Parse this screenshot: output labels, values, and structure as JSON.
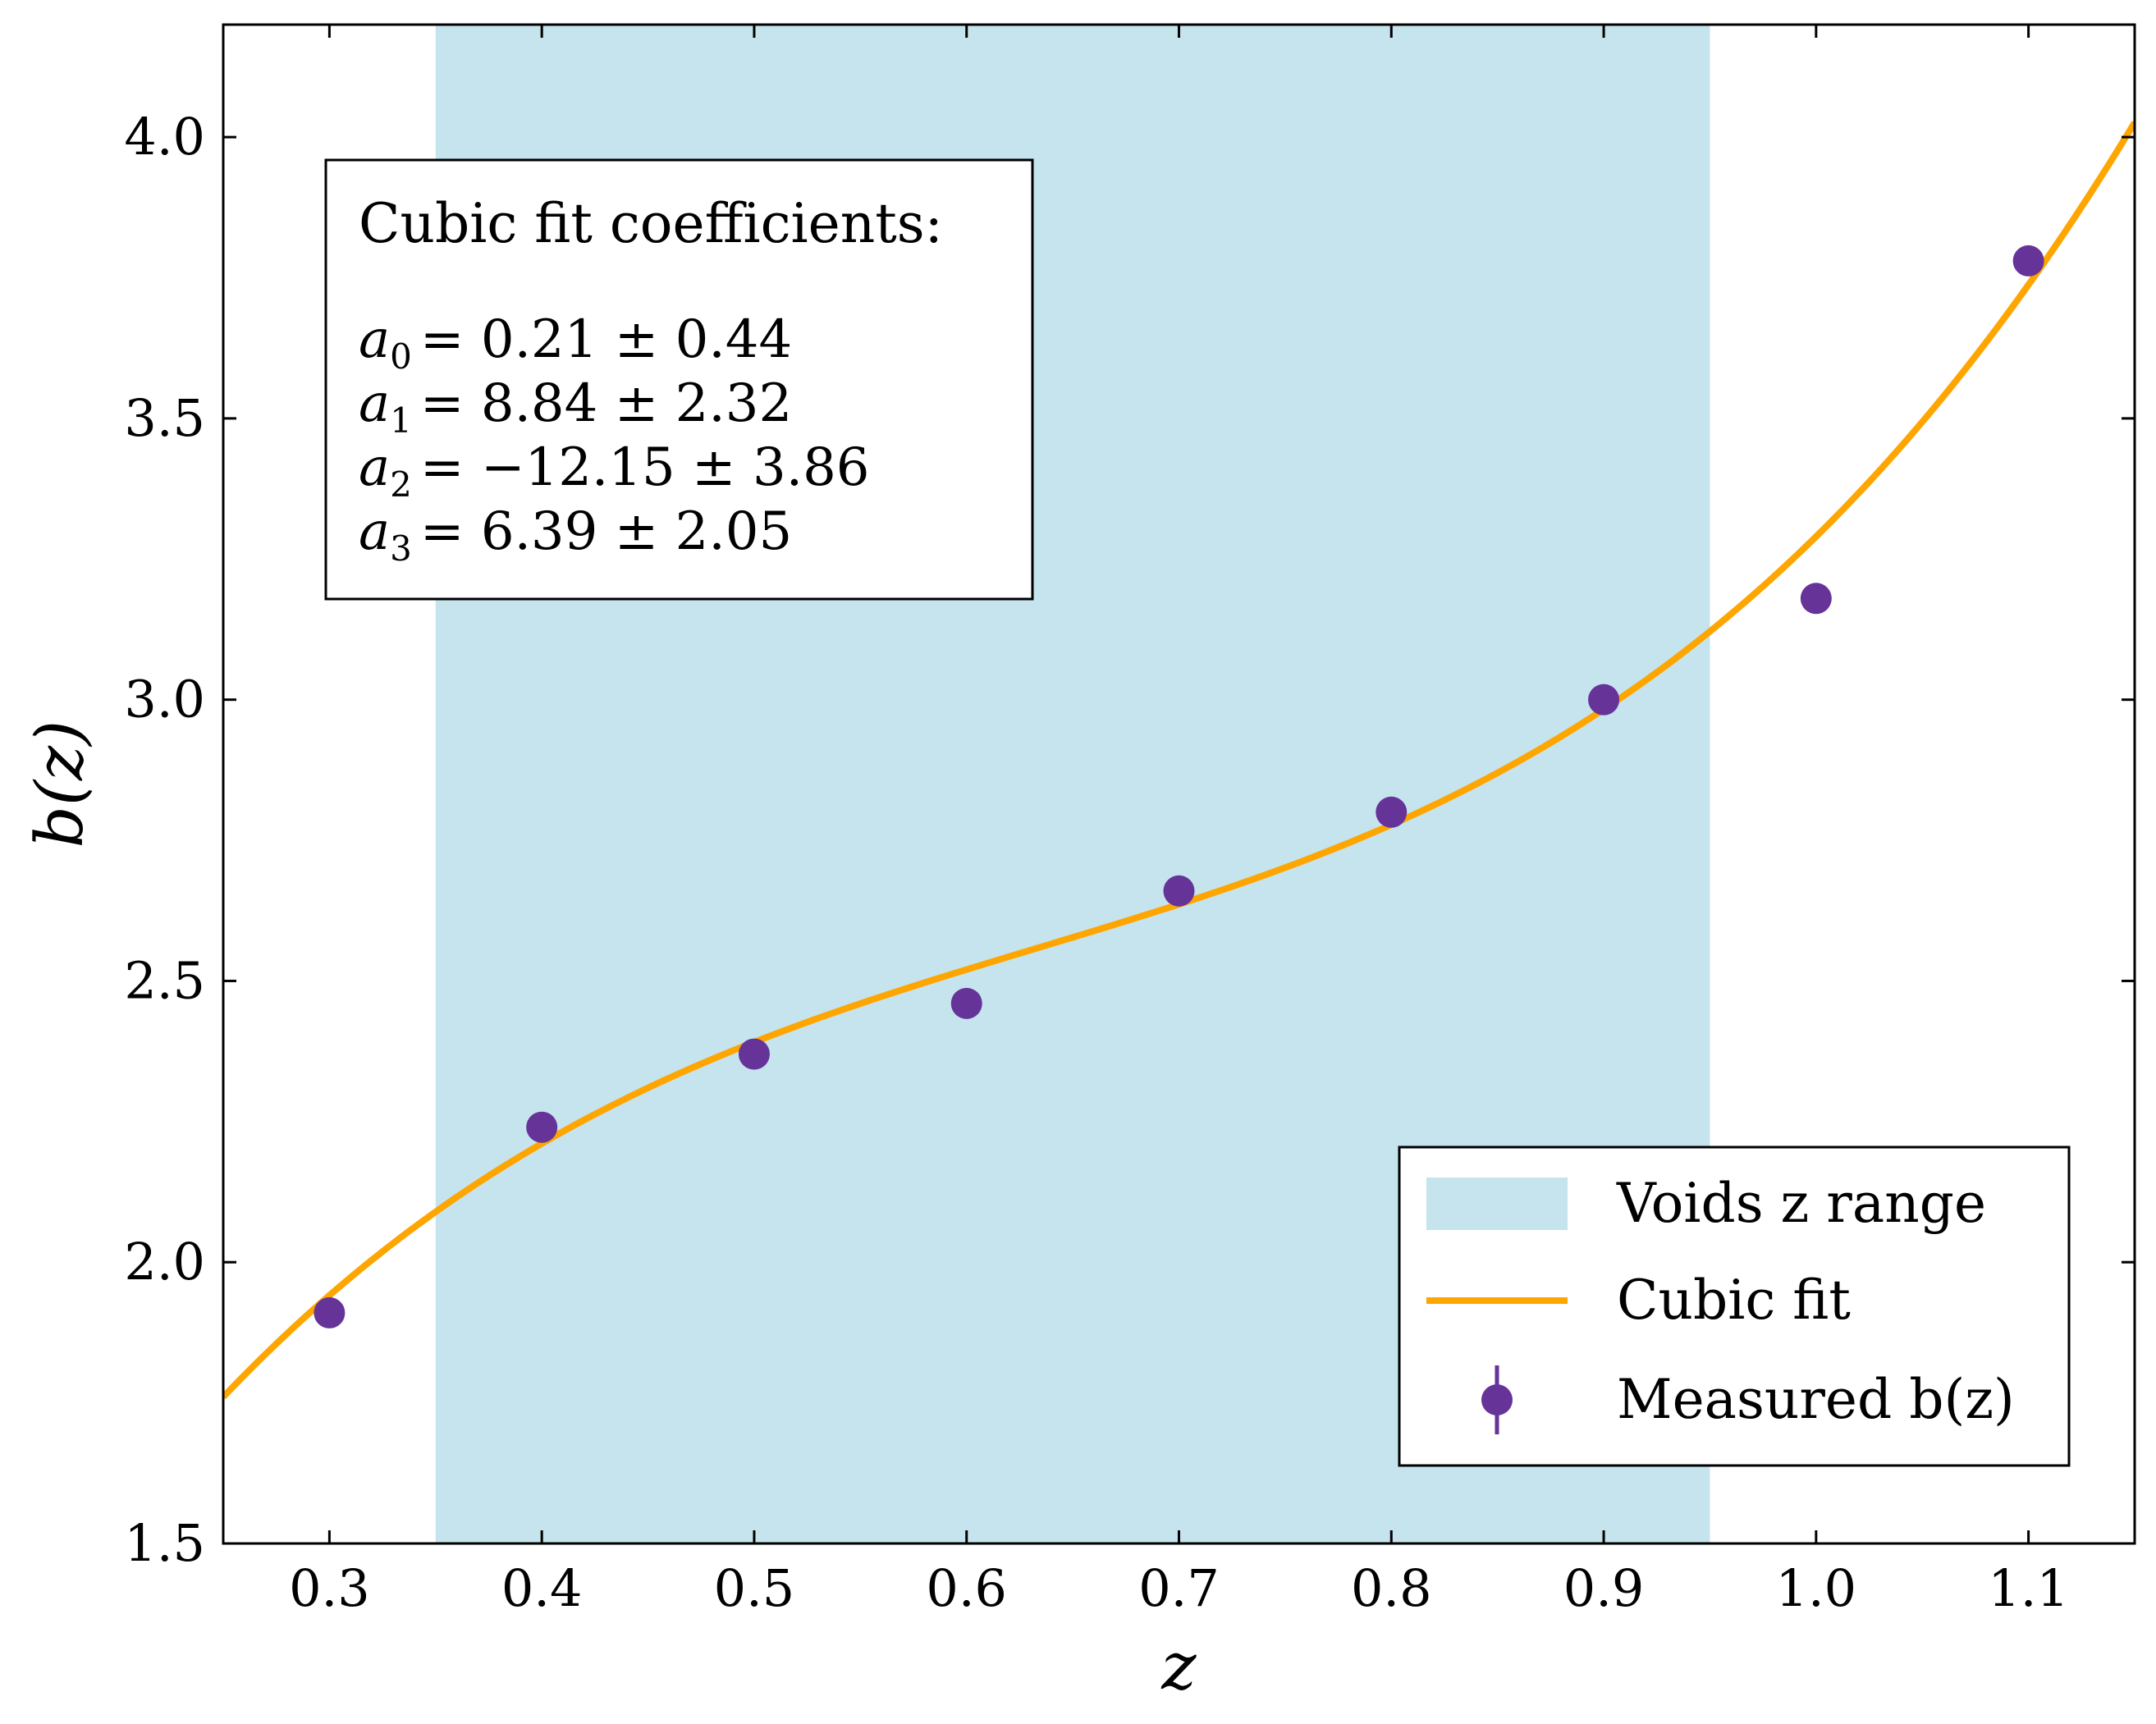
{
  "chart_data": {
    "type": "scatter",
    "xlabel": "z",
    "ylabel": "b(z)",
    "xlim": [
      0.25,
      1.15
    ],
    "ylim": [
      1.5,
      4.2
    ],
    "x_ticks": [
      0.3,
      0.4,
      0.5,
      0.6,
      0.7,
      0.8,
      0.9,
      1.0,
      1.1
    ],
    "x_tick_labels": [
      "0.3",
      "0.4",
      "0.5",
      "0.6",
      "0.7",
      "0.8",
      "0.9",
      "1.0",
      "1.1"
    ],
    "y_ticks": [
      1.5,
      2.0,
      2.5,
      3.0,
      3.5,
      4.0
    ],
    "y_tick_labels": [
      "1.5",
      "2.0",
      "2.5",
      "3.0",
      "3.5",
      "4.0"
    ],
    "grid": false,
    "shaded_region": {
      "name": "Voids z range",
      "x_range": [
        0.35,
        0.95
      ],
      "color": "#add8e6"
    },
    "series": [
      {
        "name": "Measured b(z)",
        "type": "scatter",
        "color": "#663399",
        "x": [
          0.3,
          0.4,
          0.5,
          0.6,
          0.7,
          0.8,
          0.9,
          1.0,
          1.1
        ],
        "y": [
          1.91,
          2.24,
          2.37,
          2.46,
          2.66,
          2.8,
          3.0,
          3.18,
          3.78
        ]
      },
      {
        "name": "Cubic fit",
        "type": "line",
        "color": "#ffa500",
        "coefficients": [
          0.21,
          8.84,
          -12.15,
          6.39
        ]
      }
    ],
    "legend": {
      "position": "bottom-right",
      "entries": [
        {
          "kind": "patch",
          "label": "Voids z range"
        },
        {
          "kind": "line",
          "label": "Cubic fit"
        },
        {
          "kind": "marker",
          "label": "Measured b(z)"
        }
      ]
    },
    "annotation": {
      "title": "Cubic fit coefficients:",
      "lines": [
        {
          "sym": "a",
          "sub": "0",
          "text": "= 0.21 ± 0.44"
        },
        {
          "sym": "a",
          "sub": "1",
          "text": "= 8.84 ± 2.32"
        },
        {
          "sym": "a",
          "sub": "2",
          "text": "= −12.15 ± 3.86"
        },
        {
          "sym": "a",
          "sub": "3",
          "text": "= 6.39 ± 2.05"
        }
      ]
    }
  }
}
